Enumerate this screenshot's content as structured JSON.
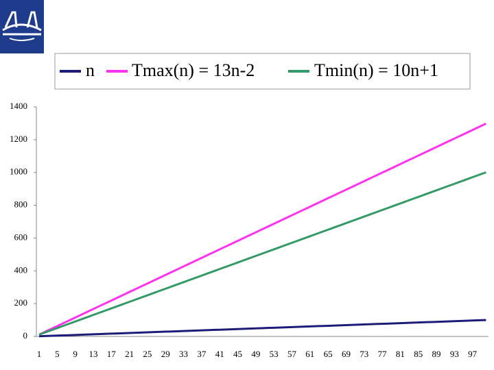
{
  "chart_data": {
    "type": "line",
    "categories": [
      1,
      null,
      null,
      null,
      5,
      null,
      null,
      null,
      9,
      null,
      null,
      null,
      13,
      null,
      null,
      null,
      17,
      null,
      null,
      null,
      21,
      null,
      null,
      null,
      25,
      null,
      null,
      null,
      29,
      null,
      null,
      null,
      33,
      null,
      null,
      null,
      37,
      null,
      null,
      null,
      41,
      null,
      null,
      null,
      45,
      null,
      null,
      null,
      49,
      null,
      null,
      null,
      53,
      null,
      null,
      null,
      57,
      null,
      null,
      null,
      61,
      null,
      null,
      null,
      65,
      null,
      null,
      null,
      69,
      null,
      null,
      null,
      73,
      null,
      null,
      null,
      77,
      null,
      null,
      null,
      81,
      null,
      null,
      null,
      85,
      null,
      null,
      null,
      89,
      null,
      null,
      null,
      93,
      null,
      null,
      null,
      97,
      null,
      null,
      null
    ],
    "series": [
      {
        "name": "n",
        "color": "#1c1c78",
        "values": [
          1,
          2,
          3,
          4,
          5,
          6,
          7,
          8,
          9,
          10,
          11,
          12,
          13,
          14,
          15,
          16,
          17,
          18,
          19,
          20,
          21,
          22,
          23,
          24,
          25,
          26,
          27,
          28,
          29,
          30,
          31,
          32,
          33,
          34,
          35,
          36,
          37,
          38,
          39,
          40,
          41,
          42,
          43,
          44,
          45,
          46,
          47,
          48,
          49,
          50,
          51,
          52,
          53,
          54,
          55,
          56,
          57,
          58,
          59,
          60,
          61,
          62,
          63,
          64,
          65,
          66,
          67,
          68,
          69,
          70,
          71,
          72,
          73,
          74,
          75,
          76,
          77,
          78,
          79,
          80,
          81,
          82,
          83,
          84,
          85,
          86,
          87,
          88,
          89,
          90,
          91,
          92,
          93,
          94,
          95,
          96,
          97,
          98,
          99,
          100
        ]
      },
      {
        "name": "Tmax(n) = 13n-2",
        "color": "#ff33ee",
        "values": [
          11,
          24,
          37,
          50,
          63,
          76,
          89,
          102,
          115,
          128,
          141,
          154,
          167,
          180,
          193,
          206,
          219,
          232,
          245,
          258,
          271,
          284,
          297,
          310,
          323,
          336,
          349,
          362,
          375,
          388,
          401,
          414,
          427,
          440,
          453,
          466,
          479,
          492,
          505,
          518,
          531,
          544,
          557,
          570,
          583,
          596,
          609,
          622,
          635,
          648,
          661,
          674,
          687,
          700,
          713,
          726,
          739,
          752,
          765,
          778,
          791,
          804,
          817,
          830,
          843,
          856,
          869,
          882,
          895,
          908,
          921,
          934,
          947,
          960,
          973,
          986,
          999,
          1012,
          1025,
          1038,
          1051,
          1064,
          1077,
          1090,
          1103,
          1116,
          1129,
          1142,
          1155,
          1168,
          1181,
          1194,
          1207,
          1220,
          1233,
          1246,
          1259,
          1272,
          1285,
          1298
        ]
      },
      {
        "name": "Tmin(n) = 10n+1",
        "color": "#339966",
        "values": [
          11,
          21,
          31,
          41,
          51,
          61,
          71,
          81,
          91,
          101,
          111,
          121,
          131,
          141,
          151,
          161,
          171,
          181,
          191,
          201,
          211,
          221,
          231,
          241,
          251,
          261,
          271,
          281,
          291,
          301,
          311,
          321,
          331,
          341,
          351,
          361,
          371,
          381,
          391,
          401,
          411,
          421,
          431,
          441,
          451,
          461,
          471,
          481,
          491,
          501,
          511,
          521,
          531,
          541,
          551,
          561,
          571,
          581,
          591,
          601,
          611,
          621,
          631,
          641,
          651,
          661,
          671,
          681,
          691,
          701,
          711,
          721,
          731,
          741,
          751,
          761,
          771,
          781,
          791,
          801,
          811,
          821,
          831,
          841,
          851,
          861,
          871,
          881,
          891,
          901,
          911,
          921,
          931,
          941,
          951,
          961,
          971,
          981,
          991,
          1001
        ]
      }
    ],
    "ylim": [
      0,
      1400
    ],
    "yticks": [
      0,
      200,
      400,
      600,
      800,
      1000,
      1200,
      1400
    ],
    "grid": false
  }
}
